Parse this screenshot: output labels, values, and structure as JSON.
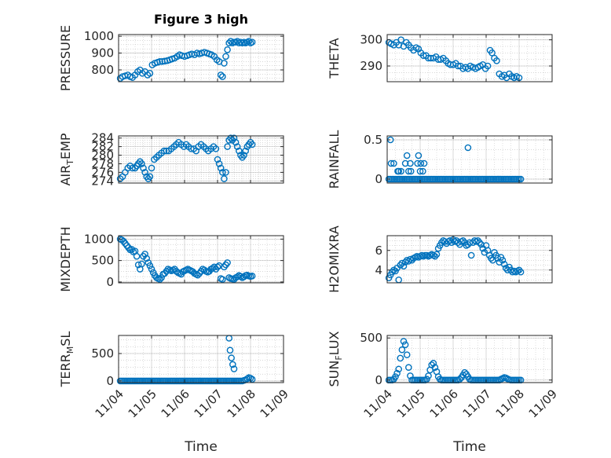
{
  "figure": {
    "title": "Figure 3 high"
  },
  "colors": {
    "marker": "#0072BD",
    "axis": "#262626",
    "grid": "#b0b0b0"
  },
  "chart_data": [
    {
      "id": "pressure",
      "type": "scatter",
      "title": "Figure 3 high",
      "ylabel": "PRESSURE",
      "ylim": [
        730,
        1010
      ],
      "yticks": [
        800,
        900,
        1000
      ],
      "ytick_labels": [
        "800",
        "900",
        "1000"
      ],
      "x": [
        0.05,
        0.12,
        0.2,
        0.28,
        0.35,
        0.42,
        0.5,
        0.58,
        0.65,
        0.72,
        0.8,
        0.88,
        0.95,
        1.02,
        1.1,
        1.18,
        1.25,
        1.32,
        1.4,
        1.48,
        1.55,
        1.62,
        1.7,
        1.78,
        1.85,
        1.92,
        2.0,
        2.08,
        2.15,
        2.22,
        2.3,
        2.38,
        2.45,
        2.52,
        2.6,
        2.68,
        2.75,
        2.82,
        2.9,
        2.98,
        3.05,
        3.1,
        3.15,
        3.2,
        3.25,
        3.3,
        3.35,
        3.4,
        3.45,
        3.5,
        3.55,
        3.6,
        3.65,
        3.7,
        3.75,
        3.8,
        3.85,
        3.9,
        3.95,
        4.0,
        4.05
      ],
      "y": [
        750,
        760,
        765,
        770,
        760,
        755,
        770,
        790,
        800,
        780,
        790,
        770,
        780,
        830,
        840,
        845,
        850,
        850,
        852,
        855,
        860,
        865,
        870,
        880,
        890,
        885,
        880,
        885,
        890,
        895,
        890,
        900,
        895,
        900,
        905,
        900,
        895,
        890,
        880,
        860,
        850,
        770,
        760,
        840,
        880,
        920,
        960,
        970,
        960,
        965,
        965,
        970,
        960,
        965,
        960,
        965,
        960,
        965,
        970,
        960,
        965
      ]
    },
    {
      "id": "theta",
      "type": "scatter",
      "ylabel": "THETA",
      "ylim": [
        284,
        302
      ],
      "yticks": [
        290,
        300
      ],
      "ytick_labels": [
        "290",
        "300"
      ],
      "x": [
        0.05,
        0.12,
        0.2,
        0.28,
        0.35,
        0.42,
        0.5,
        0.58,
        0.65,
        0.72,
        0.8,
        0.88,
        0.95,
        1.02,
        1.1,
        1.18,
        1.25,
        1.32,
        1.4,
        1.48,
        1.55,
        1.62,
        1.7,
        1.78,
        1.85,
        1.92,
        2.0,
        2.08,
        2.15,
        2.22,
        2.3,
        2.38,
        2.45,
        2.52,
        2.6,
        2.68,
        2.75,
        2.82,
        2.9,
        2.98,
        3.05,
        3.12,
        3.18,
        3.25,
        3.32,
        3.4,
        3.48,
        3.55,
        3.62,
        3.7,
        3.78,
        3.85,
        3.92,
        4.0
      ],
      "y": [
        299,
        298.5,
        298,
        299,
        298,
        300,
        297.5,
        299,
        298,
        297,
        296,
        297,
        296.5,
        295,
        294,
        294,
        293,
        293,
        293,
        293.5,
        292.5,
        292.5,
        293,
        292,
        291,
        290.5,
        290.5,
        291,
        290,
        290,
        289,
        289.5,
        289,
        290,
        289.5,
        289,
        289.5,
        290,
        290.5,
        289,
        290,
        296,
        295,
        293,
        292,
        287,
        286,
        286.5,
        285.5,
        287,
        286,
        285.5,
        286,
        285.5
      ]
    },
    {
      "id": "air_temp",
      "type": "scatter",
      "ylabel": "AIR_TEMP",
      "ylim": [
        273.5,
        284.5
      ],
      "yticks": [
        274,
        276,
        278,
        280,
        282,
        284
      ],
      "ytick_labels": [
        "274",
        "276",
        "278",
        "280",
        "282",
        "284"
      ],
      "x": [
        0.05,
        0.12,
        0.2,
        0.28,
        0.35,
        0.42,
        0.5,
        0.55,
        0.6,
        0.65,
        0.7,
        0.75,
        0.8,
        0.85,
        0.9,
        0.95,
        1.0,
        1.08,
        1.15,
        1.22,
        1.3,
        1.38,
        1.45,
        1.52,
        1.6,
        1.68,
        1.75,
        1.82,
        1.9,
        1.98,
        2.05,
        2.12,
        2.2,
        2.28,
        2.35,
        2.42,
        2.5,
        2.58,
        2.65,
        2.72,
        2.8,
        2.88,
        2.95,
        3.0,
        3.05,
        3.1,
        3.15,
        3.2,
        3.25,
        3.3,
        3.35,
        3.4,
        3.45,
        3.5,
        3.55,
        3.6,
        3.65,
        3.7,
        3.75,
        3.8,
        3.85,
        3.9,
        3.95,
        4.0,
        4.05
      ],
      "y": [
        274.5,
        275,
        276,
        277,
        277.5,
        277,
        277,
        277.5,
        278,
        278.5,
        278,
        277,
        276,
        275,
        274.5,
        275,
        277,
        279,
        279.5,
        280,
        280.5,
        281,
        281,
        281,
        281.5,
        282,
        282.5,
        283,
        282.5,
        282,
        282.5,
        282,
        281.5,
        281.5,
        281,
        282,
        282.5,
        282,
        281.5,
        281,
        281.5,
        282,
        281.5,
        279,
        278,
        277,
        276,
        274.5,
        276,
        282,
        283.5,
        284,
        283.5,
        284,
        283,
        282,
        281,
        280,
        279.5,
        280,
        281,
        282,
        282.5,
        283,
        282.5
      ]
    },
    {
      "id": "rainfall",
      "type": "scatter",
      "ylabel": "RAINFALL",
      "ylim": [
        -0.05,
        0.55
      ],
      "yticks": [
        0,
        0.5
      ],
      "ytick_labels": [
        "0",
        "0.5"
      ],
      "x": [
        0.05,
        0.1,
        0.15,
        0.2,
        0.25,
        0.3,
        0.35,
        0.4,
        0.45,
        0.5,
        0.55,
        0.6,
        0.65,
        0.7,
        0.75,
        0.8,
        0.85,
        0.9,
        0.95,
        1.0,
        1.05,
        1.1,
        1.15,
        1.2,
        1.25,
        1.3,
        1.35,
        1.4,
        1.45,
        1.5,
        1.55,
        1.6,
        1.65,
        1.7,
        1.75,
        1.8,
        1.85,
        1.9,
        1.95,
        2.0,
        2.05,
        2.1,
        2.15,
        2.2,
        2.25,
        2.3,
        2.35,
        2.4,
        2.45,
        2.5,
        2.55,
        2.6,
        2.65,
        2.7,
        2.75,
        2.8,
        2.85,
        2.9,
        2.95,
        3.0,
        3.05,
        3.1,
        3.15,
        3.2,
        3.25,
        3.3,
        3.35,
        3.4,
        3.45,
        3.5,
        3.55,
        3.6,
        3.65,
        3.7,
        3.75,
        3.8,
        3.85,
        3.9,
        3.95,
        4.0,
        4.05,
        0.1,
        0.12,
        0.2,
        0.32,
        0.35,
        0.42,
        0.55,
        0.6,
        0.65,
        0.7,
        0.72,
        0.92,
        0.95,
        1.0,
        1.02,
        1.08,
        1.12,
        2.45
      ],
      "y": [
        0,
        0,
        0,
        0,
        0,
        0,
        0,
        0,
        0,
        0,
        0,
        0,
        0,
        0,
        0,
        0,
        0,
        0,
        0,
        0,
        0,
        0,
        0,
        0,
        0,
        0,
        0,
        0,
        0,
        0,
        0,
        0,
        0,
        0,
        0,
        0,
        0,
        0,
        0,
        0,
        0,
        0,
        0,
        0,
        0,
        0,
        0,
        0,
        0,
        0,
        0,
        0,
        0,
        0,
        0,
        0,
        0,
        0,
        0,
        0,
        0,
        0,
        0,
        0,
        0,
        0,
        0,
        0,
        0,
        0,
        0,
        0,
        0,
        0,
        0,
        0,
        0,
        0,
        0,
        0,
        0,
        0.5,
        0.2,
        0.2,
        0.1,
        0.1,
        0.1,
        0.2,
        0.3,
        0.1,
        0.2,
        0.1,
        0.2,
        0.3,
        0.1,
        0.2,
        0.1,
        0.2,
        0.4
      ]
    },
    {
      "id": "mixdepth",
      "type": "scatter",
      "ylabel": "MIXDEPTH",
      "ylim": [
        -20,
        1080
      ],
      "yticks": [
        0,
        500,
        1000
      ],
      "ytick_labels": [
        "0",
        "500",
        "1000"
      ],
      "x": [
        0.05,
        0.1,
        0.15,
        0.2,
        0.25,
        0.3,
        0.35,
        0.4,
        0.45,
        0.5,
        0.55,
        0.6,
        0.65,
        0.7,
        0.75,
        0.8,
        0.85,
        0.9,
        0.95,
        1.0,
        1.05,
        1.1,
        1.15,
        1.2,
        1.25,
        1.3,
        1.35,
        1.4,
        1.45,
        1.5,
        1.55,
        1.6,
        1.65,
        1.7,
        1.75,
        1.8,
        1.85,
        1.9,
        1.95,
        2.0,
        2.05,
        2.1,
        2.15,
        2.2,
        2.25,
        2.3,
        2.35,
        2.4,
        2.45,
        2.5,
        2.55,
        2.6,
        2.65,
        2.7,
        2.75,
        2.8,
        2.85,
        2.9,
        2.95,
        3.0,
        3.05,
        3.1,
        3.15,
        3.2,
        3.25,
        3.3,
        3.35,
        3.4,
        3.45,
        3.5,
        3.55,
        3.6,
        3.65,
        3.7,
        3.75,
        3.8,
        3.85,
        3.9,
        3.95,
        4.0,
        4.05
      ],
      "y": [
        1000,
        980,
        950,
        900,
        850,
        800,
        750,
        760,
        700,
        720,
        600,
        400,
        300,
        420,
        600,
        650,
        550,
        450,
        380,
        300,
        220,
        150,
        100,
        80,
        60,
        100,
        180,
        200,
        250,
        300,
        280,
        260,
        280,
        300,
        250,
        220,
        200,
        180,
        240,
        260,
        280,
        300,
        280,
        260,
        240,
        200,
        180,
        160,
        200,
        250,
        300,
        280,
        250,
        230,
        250,
        300,
        320,
        350,
        300,
        350,
        380,
        80,
        60,
        350,
        400,
        450,
        100,
        80,
        70,
        60,
        100,
        120,
        150,
        130,
        100,
        120,
        150,
        160,
        140,
        130,
        140
      ]
    },
    {
      "id": "h2omixra",
      "type": "scatter",
      "ylabel": "H2OMIXRA",
      "ylim": [
        2.7,
        7.5
      ],
      "yticks": [
        4,
        6
      ],
      "ytick_labels": [
        "4",
        "6"
      ],
      "x": [
        0.05,
        0.1,
        0.15,
        0.2,
        0.25,
        0.3,
        0.35,
        0.4,
        0.45,
        0.5,
        0.55,
        0.6,
        0.65,
        0.7,
        0.75,
        0.8,
        0.85,
        0.9,
        0.95,
        1.0,
        1.05,
        1.1,
        1.15,
        1.2,
        1.25,
        1.3,
        1.35,
        1.4,
        1.45,
        1.5,
        1.55,
        1.6,
        1.65,
        1.7,
        1.75,
        1.8,
        1.85,
        1.9,
        1.95,
        2.0,
        2.05,
        2.1,
        2.15,
        2.2,
        2.25,
        2.3,
        2.35,
        2.4,
        2.45,
        2.5,
        2.55,
        2.6,
        2.65,
        2.7,
        2.75,
        2.8,
        2.85,
        2.9,
        2.95,
        3.0,
        3.05,
        3.1,
        3.15,
        3.2,
        3.25,
        3.3,
        3.35,
        3.4,
        3.45,
        3.5,
        3.55,
        3.6,
        3.65,
        3.7,
        3.75,
        3.8,
        3.85,
        3.9,
        3.95,
        4.0,
        4.05
      ],
      "y": [
        3.2,
        3.5,
        3.8,
        4.0,
        3.9,
        4.2,
        3.0,
        4.5,
        4.7,
        4.4,
        4.8,
        5.0,
        4.9,
        5.1,
        5.0,
        5.2,
        5.3,
        5.4,
        5.3,
        5.4,
        5.5,
        5.4,
        5.5,
        5.5,
        5.4,
        5.5,
        5.6,
        5.5,
        5.4,
        5.6,
        6.2,
        6.5,
        6.8,
        7.0,
        6.9,
        6.7,
        6.9,
        7.0,
        6.8,
        7.1,
        6.9,
        7.0,
        6.8,
        6.6,
        6.9,
        7.0,
        6.8,
        6.5,
        6.6,
        6.8,
        5.5,
        6.8,
        7.0,
        6.9,
        7.0,
        6.8,
        6.6,
        6.2,
        5.8,
        6.5,
        6.0,
        5.5,
        5.2,
        5.0,
        5.8,
        5.5,
        5.2,
        4.8,
        5.3,
        5.0,
        4.6,
        4.2,
        4.0,
        4.3,
        4.0,
        3.8,
        3.9,
        3.8,
        3.9,
        4.0,
        3.8
      ]
    },
    {
      "id": "terr_msl",
      "type": "scatter",
      "ylabel": "TERR_MSL",
      "ylim": [
        -30,
        830
      ],
      "yticks": [
        0,
        500
      ],
      "ytick_labels": [
        "0",
        "500"
      ],
      "xticks": [
        0,
        1,
        2,
        3,
        4,
        5
      ],
      "xtick_labels": [
        "11/04",
        "11/05",
        "11/06",
        "11/07",
        "11/08",
        "11/09"
      ],
      "xlabel": "Time",
      "x": [
        0.05,
        0.1,
        0.15,
        0.2,
        0.25,
        0.3,
        0.35,
        0.4,
        0.45,
        0.5,
        0.55,
        0.6,
        0.65,
        0.7,
        0.75,
        0.8,
        0.85,
        0.9,
        0.95,
        1.0,
        1.05,
        1.1,
        1.15,
        1.2,
        1.25,
        1.3,
        1.35,
        1.4,
        1.45,
        1.5,
        1.55,
        1.6,
        1.65,
        1.7,
        1.75,
        1.8,
        1.85,
        1.9,
        1.95,
        2.0,
        2.05,
        2.1,
        2.15,
        2.2,
        2.25,
        2.3,
        2.35,
        2.4,
        2.45,
        2.5,
        2.55,
        2.6,
        2.65,
        2.7,
        2.75,
        2.8,
        2.85,
        2.9,
        2.95,
        3.0,
        3.05,
        3.1,
        3.15,
        3.2,
        3.25,
        3.3,
        3.35,
        3.4,
        3.45,
        3.5,
        3.55,
        3.6,
        3.65,
        3.7,
        3.75,
        3.8,
        3.85,
        3.9,
        3.95,
        4.0,
        4.05,
        3.35,
        3.38,
        3.42,
        3.46,
        3.5
      ],
      "y": [
        0,
        0,
        0,
        0,
        0,
        0,
        0,
        0,
        0,
        0,
        0,
        0,
        0,
        0,
        0,
        0,
        0,
        0,
        0,
        0,
        0,
        0,
        0,
        0,
        0,
        0,
        0,
        0,
        0,
        0,
        0,
        0,
        0,
        0,
        0,
        0,
        0,
        0,
        0,
        0,
        0,
        0,
        0,
        0,
        0,
        0,
        0,
        0,
        0,
        0,
        0,
        0,
        0,
        0,
        0,
        0,
        0,
        0,
        0,
        0,
        0,
        0,
        0,
        0,
        0,
        0,
        0,
        0,
        0,
        0,
        0,
        0,
        0,
        0,
        0,
        10,
        20,
        40,
        60,
        50,
        30,
        780,
        560,
        420,
        300,
        220
      ]
    },
    {
      "id": "sun_flux",
      "type": "scatter",
      "ylabel": "SUN_FLUX",
      "ylim": [
        -30,
        530
      ],
      "yticks": [
        0,
        500
      ],
      "ytick_labels": [
        "0",
        "500"
      ],
      "xticks": [
        0,
        1,
        2,
        3,
        4,
        5
      ],
      "xtick_labels": [
        "11/04",
        "11/05",
        "11/06",
        "11/07",
        "11/08",
        "11/09"
      ],
      "xlabel": "Time",
      "x": [
        0.05,
        0.1,
        0.15,
        0.2,
        0.25,
        0.3,
        0.35,
        0.4,
        0.45,
        0.5,
        0.55,
        0.6,
        0.65,
        0.7,
        0.75,
        0.8,
        0.85,
        0.9,
        0.95,
        1.0,
        1.05,
        1.1,
        1.15,
        1.2,
        1.25,
        1.3,
        1.35,
        1.4,
        1.45,
        1.5,
        1.55,
        1.6,
        1.65,
        1.7,
        1.75,
        1.8,
        1.85,
        1.9,
        1.95,
        2.0,
        2.05,
        2.1,
        2.15,
        2.2,
        2.25,
        2.3,
        2.35,
        2.4,
        2.45,
        2.5,
        2.55,
        2.6,
        2.65,
        2.7,
        2.75,
        2.8,
        2.85,
        2.9,
        2.95,
        3.0,
        3.05,
        3.1,
        3.15,
        3.2,
        3.25,
        3.3,
        3.35,
        3.4,
        3.45,
        3.5,
        3.55,
        3.6,
        3.65,
        3.7,
        3.75,
        3.8,
        3.85,
        3.9,
        3.95,
        4.0,
        4.05
      ],
      "y": [
        0,
        0,
        0,
        10,
        40,
        80,
        130,
        260,
        360,
        460,
        420,
        300,
        150,
        50,
        0,
        0,
        0,
        0,
        0,
        0,
        0,
        0,
        0,
        10,
        50,
        120,
        180,
        200,
        150,
        100,
        40,
        10,
        0,
        0,
        0,
        0,
        0,
        0,
        0,
        0,
        0,
        0,
        0,
        10,
        30,
        60,
        90,
        70,
        40,
        10,
        0,
        0,
        0,
        0,
        0,
        0,
        0,
        0,
        0,
        0,
        0,
        0,
        0,
        0,
        0,
        0,
        0,
        0,
        10,
        20,
        30,
        25,
        15,
        5,
        0,
        0,
        0,
        0,
        0,
        0,
        0
      ]
    }
  ]
}
